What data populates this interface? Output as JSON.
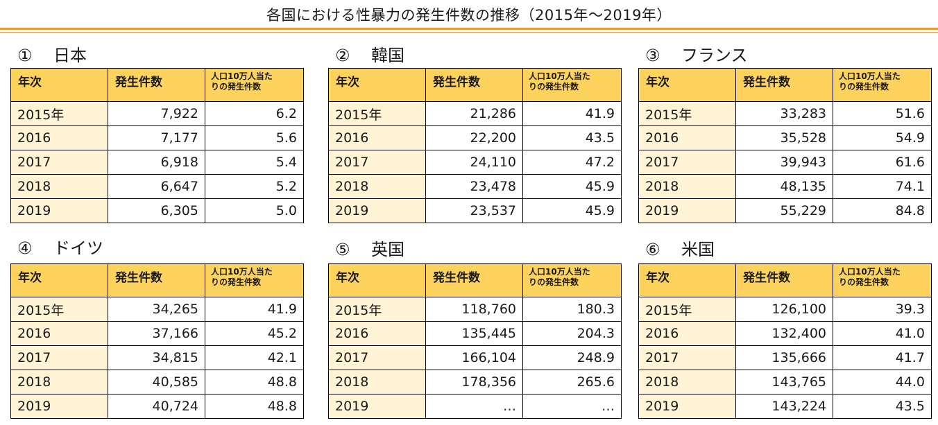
{
  "title": "各国における性暴力の発生件数の推移（2015年～2019年）",
  "headers": {
    "year": "年次",
    "count": "発生件数",
    "rate_line1": "人口10万人当た",
    "rate_line2": "りの発生件数"
  },
  "panels": [
    {
      "num": "①",
      "name": "日本",
      "rows": [
        {
          "year": "2015年",
          "count": "7,922",
          "rate": "6.2"
        },
        {
          "year": "2016",
          "count": "7,177",
          "rate": "5.6"
        },
        {
          "year": "2017",
          "count": "6,918",
          "rate": "5.4"
        },
        {
          "year": "2018",
          "count": "6,647",
          "rate": "5.2"
        },
        {
          "year": "2019",
          "count": "6,305",
          "rate": "5.0"
        }
      ]
    },
    {
      "num": "②",
      "name": "韓国",
      "rows": [
        {
          "year": "2015年",
          "count": "21,286",
          "rate": "41.9"
        },
        {
          "year": "2016",
          "count": "22,200",
          "rate": "43.5"
        },
        {
          "year": "2017",
          "count": "24,110",
          "rate": "47.2"
        },
        {
          "year": "2018",
          "count": "23,478",
          "rate": "45.9"
        },
        {
          "year": "2019",
          "count": "23,537",
          "rate": "45.9"
        }
      ]
    },
    {
      "num": "③",
      "name": "フランス",
      "rows": [
        {
          "year": "2015年",
          "count": "33,283",
          "rate": "51.6"
        },
        {
          "year": "2016",
          "count": "35,528",
          "rate": "54.9"
        },
        {
          "year": "2017",
          "count": "39,943",
          "rate": "61.6"
        },
        {
          "year": "2018",
          "count": "48,135",
          "rate": "74.1"
        },
        {
          "year": "2019",
          "count": "55,229",
          "rate": "84.8"
        }
      ]
    },
    {
      "num": "④",
      "name": "ドイツ",
      "rows": [
        {
          "year": "2015年",
          "count": "34,265",
          "rate": "41.9"
        },
        {
          "year": "2016",
          "count": "37,166",
          "rate": "45.2"
        },
        {
          "year": "2017",
          "count": "34,815",
          "rate": "42.1"
        },
        {
          "year": "2018",
          "count": "40,585",
          "rate": "48.8"
        },
        {
          "year": "2019",
          "count": "40,724",
          "rate": "48.8"
        }
      ]
    },
    {
      "num": "⑤",
      "name": "英国",
      "rows": [
        {
          "year": "2015年",
          "count": "118,760",
          "rate": "180.3"
        },
        {
          "year": "2016",
          "count": "135,445",
          "rate": "204.3"
        },
        {
          "year": "2017",
          "count": "166,104",
          "rate": "248.9"
        },
        {
          "year": "2018",
          "count": "178,356",
          "rate": "265.6"
        },
        {
          "year": "2019",
          "count": "…",
          "rate": "…"
        }
      ]
    },
    {
      "num": "⑥",
      "name": "米国",
      "rows": [
        {
          "year": "2015年",
          "count": "126,100",
          "rate": "39.3"
        },
        {
          "year": "2016",
          "count": "132,400",
          "rate": "41.0"
        },
        {
          "year": "2017",
          "count": "135,666",
          "rate": "41.7"
        },
        {
          "year": "2018",
          "count": "143,765",
          "rate": "44.0"
        },
        {
          "year": "2019",
          "count": "143,224",
          "rate": "43.5"
        }
      ]
    }
  ]
}
